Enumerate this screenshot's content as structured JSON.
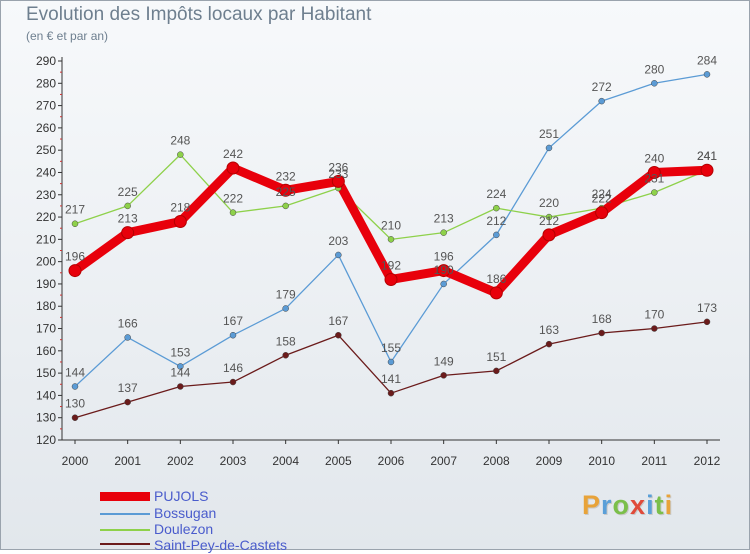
{
  "header": {
    "title": "Evolution des Impôts locaux par Habitant",
    "subtitle": "(en € et par an)"
  },
  "logo": {
    "text": "Proxiti",
    "colors": [
      "#e8a33a",
      "#5a9fd8",
      "#7bbf4a",
      "#e04a3a",
      "#5a9fd8",
      "#7bbf4a",
      "#e8a33a"
    ]
  },
  "chart_data": {
    "type": "line",
    "title": "Evolution des Impôts locaux par Habitant",
    "subtitle": "(en € et par an)",
    "x": [
      "2000",
      "2001",
      "2002",
      "2003",
      "2004",
      "2005",
      "2006",
      "2007",
      "2008",
      "2009",
      "2010",
      "2011",
      "2012"
    ],
    "ylim": [
      120,
      290
    ],
    "yticks": [
      120,
      130,
      140,
      150,
      160,
      170,
      180,
      190,
      200,
      210,
      220,
      230,
      240,
      250,
      260,
      270,
      280,
      290
    ],
    "grid": false,
    "legend": "bottom-left",
    "series": [
      {
        "name": "PUJOLS",
        "color": "#e8000b",
        "values": [
          196,
          213,
          218,
          242,
          232,
          236,
          192,
          196,
          186,
          212,
          222,
          240,
          241
        ]
      },
      {
        "name": "Bossugan",
        "color": "#5b9bd5",
        "values": [
          144,
          166,
          153,
          167,
          179,
          203,
          155,
          190,
          212,
          251,
          272,
          280,
          284
        ]
      },
      {
        "name": "Doulezon",
        "color": "#8ed14a",
        "values": [
          217,
          225,
          248,
          222,
          225,
          233,
          210,
          213,
          224,
          220,
          224,
          231,
          241
        ]
      },
      {
        "name": "Saint-Pey-de-Castets",
        "color": "#6b1b1b",
        "values": [
          130,
          137,
          144,
          146,
          158,
          167,
          141,
          149,
          151,
          163,
          168,
          170,
          173
        ]
      }
    ]
  }
}
